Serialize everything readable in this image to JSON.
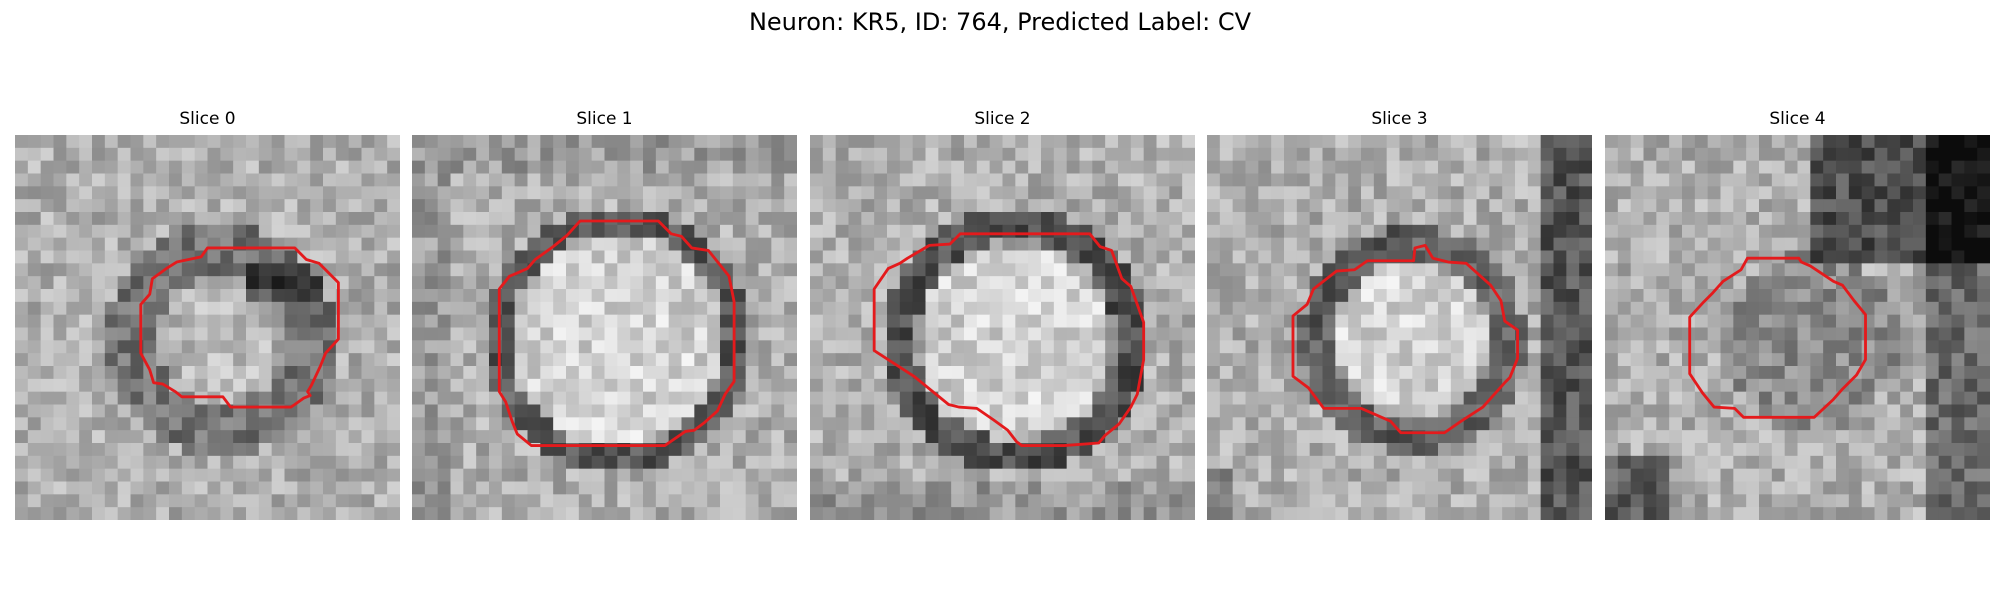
{
  "figure": {
    "title": "Neuron: KR5, ID: 764, Predicted Label: CV"
  },
  "colors": {
    "contour": "#e41a1c",
    "background": "#ffffff"
  },
  "panels": [
    {
      "title": "Slice 0"
    },
    {
      "title": "Slice 1"
    },
    {
      "title": "Slice 2"
    },
    {
      "title": "Slice 3"
    },
    {
      "title": "Slice 4"
    }
  ]
}
